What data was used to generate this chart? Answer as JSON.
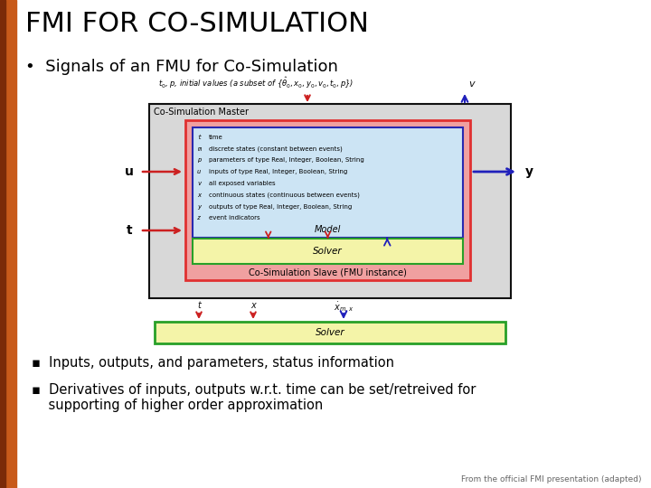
{
  "title": "FMI FOR CO-SIMULATION",
  "title_fontsize": 22,
  "title_fontweight": "normal",
  "title_color": "#000000",
  "bg_color": "#ffffff",
  "left_bar_color": "#c85a1a",
  "left_bar_dark": "#7a2a08",
  "bullet_text": "Signals of an FMU for Co-Simulation",
  "bullet_fontsize": 13,
  "sub_bullets": [
    "Inputs, outputs, and parameters, status information",
    "Derivatives of inputs, outputs w.r.t. time can be set/retreived for\n    supporting of higher order approximation"
  ],
  "sub_bullet_fontsize": 10.5,
  "footnote": "From the official FMI presentation (adapted)",
  "model_lines": [
    [
      "t",
      "time"
    ],
    [
      "m",
      "discrete states (constant between events)"
    ],
    [
      "p",
      "parameters of type Real, Integer, Boolean, String"
    ],
    [
      "u",
      "inputs of type Real, Integer, Boolean, String"
    ],
    [
      "v",
      "all exposed variables"
    ],
    [
      "x",
      "continuous states (continuous between events)"
    ],
    [
      "y",
      "outputs of type Real, Integer, Boolean, String"
    ],
    [
      "z",
      "event indicators"
    ]
  ],
  "colors": {
    "outer_box": "#111111",
    "cosim_master_bg": "#d8d8d8",
    "slave_box": "#e03030",
    "slave_bg": "#f0a0a0",
    "model_box": "#2828b0",
    "model_bg": "#cce4f4",
    "solver_inner_box": "#28a028",
    "solver_inner_bg": "#f4f4a8",
    "solver_outer_box": "#28a028",
    "solver_outer_bg": "#f4f4a8",
    "arrow_red": "#cc2020",
    "arrow_blue": "#2020bb"
  }
}
